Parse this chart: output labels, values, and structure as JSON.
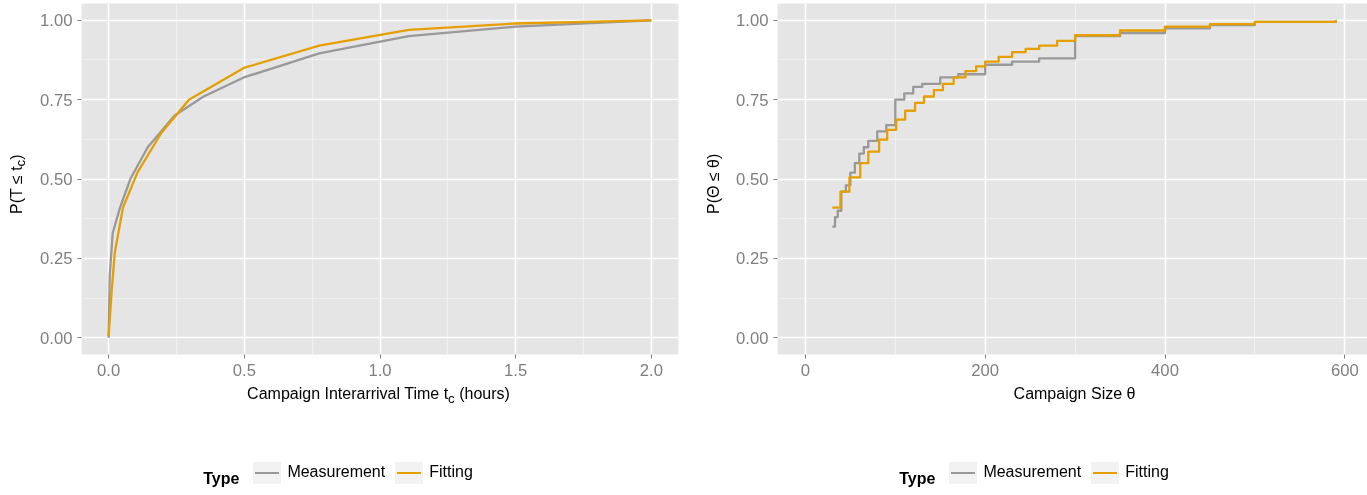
{
  "chart_data": [
    {
      "type": "line",
      "xlabel": "Campaign Interarrival Time t$_{c}$ (hours)",
      "ylabel": "P(T ≤ t$_{c}$)",
      "legend_title": "Type",
      "legend": "bottom",
      "grid": true,
      "xlim": [
        -0.1,
        2.1
      ],
      "ylim": [
        -0.053,
        1.053
      ],
      "xticks": [
        {
          "value": 0,
          "label": "0.0"
        },
        {
          "value": 0.5,
          "label": "0.5"
        },
        {
          "value": 1,
          "label": "1.0"
        },
        {
          "value": 1.5,
          "label": "1.5"
        },
        {
          "value": 2,
          "label": "2.0"
        }
      ],
      "yticks": [
        {
          "value": 0,
          "label": "0.00"
        },
        {
          "value": 0.25,
          "label": "0.25"
        },
        {
          "value": 0.5,
          "label": "0.50"
        },
        {
          "value": 0.75,
          "label": "0.75"
        },
        {
          "value": 1,
          "label": "1.00"
        }
      ],
      "series": [
        {
          "name": "Measurement",
          "color": "#999999",
          "x": [
            0,
            0.004,
            0.015,
            0.042,
            0.08,
            0.144,
            0.243,
            0.35,
            0.498,
            0.776,
            1.106,
            1.5,
            2.0
          ],
          "values": [
            0,
            0.195,
            0.33,
            0.41,
            0.5,
            0.6,
            0.7,
            0.76,
            0.82,
            0.896,
            0.95,
            0.98,
            1.0
          ]
        },
        {
          "name": "Fitting",
          "color": "#E69F00",
          "x": [
            0,
            0.011,
            0.023,
            0.053,
            0.106,
            0.194,
            0.296,
            0.498,
            0.776,
            1.106,
            1.5,
            2.0
          ],
          "values": [
            0.005,
            0.145,
            0.27,
            0.41,
            0.52,
            0.645,
            0.75,
            0.85,
            0.92,
            0.97,
            0.99,
            1.0
          ]
        }
      ]
    },
    {
      "type": "step",
      "xlabel": "Campaign Size θ",
      "ylabel": "P(Θ ≤ θ)",
      "legend_title": "Type",
      "legend": "bottom",
      "grid": true,
      "xlim": [
        -31,
        633
      ],
      "ylim": [
        -0.053,
        1.053
      ],
      "xticks": [
        0,
        200,
        400,
        600
      ],
      "yticks": [
        {
          "value": 0,
          "label": "0.00"
        },
        {
          "value": 0.25,
          "label": "0.25"
        },
        {
          "value": 0.5,
          "label": "0.50"
        },
        {
          "value": 0.75,
          "label": "0.75"
        },
        {
          "value": 1,
          "label": "1.00"
        }
      ],
      "series": [
        {
          "name": "Measurement",
          "color": "#999999",
          "x": [
            30,
            33,
            36,
            40,
            45,
            50,
            55,
            60,
            65,
            70,
            80,
            90,
            100,
            110,
            120,
            130,
            150,
            170,
            200,
            230,
            260,
            300,
            350,
            400,
            450,
            500,
            590
          ],
          "values": [
            0.35,
            0.38,
            0.4,
            0.46,
            0.48,
            0.52,
            0.55,
            0.58,
            0.6,
            0.62,
            0.65,
            0.67,
            0.75,
            0.77,
            0.79,
            0.8,
            0.82,
            0.83,
            0.86,
            0.87,
            0.88,
            0.95,
            0.96,
            0.975,
            0.985,
            0.995,
            1.0
          ]
        },
        {
          "name": "Fitting",
          "color": "#E69F00",
          "x": [
            30,
            39,
            49,
            61,
            70,
            82,
            91,
            101,
            111,
            122,
            132,
            143,
            153,
            165,
            178,
            190,
            200,
            215,
            230,
            245,
            260,
            280,
            300,
            350,
            400,
            450,
            500,
            590
          ],
          "values": [
            0.41,
            0.46,
            0.505,
            0.55,
            0.586,
            0.624,
            0.655,
            0.687,
            0.715,
            0.74,
            0.76,
            0.78,
            0.8,
            0.82,
            0.84,
            0.855,
            0.87,
            0.885,
            0.9,
            0.91,
            0.92,
            0.935,
            0.953,
            0.968,
            0.98,
            0.988,
            0.995,
            1.0
          ]
        }
      ]
    }
  ]
}
